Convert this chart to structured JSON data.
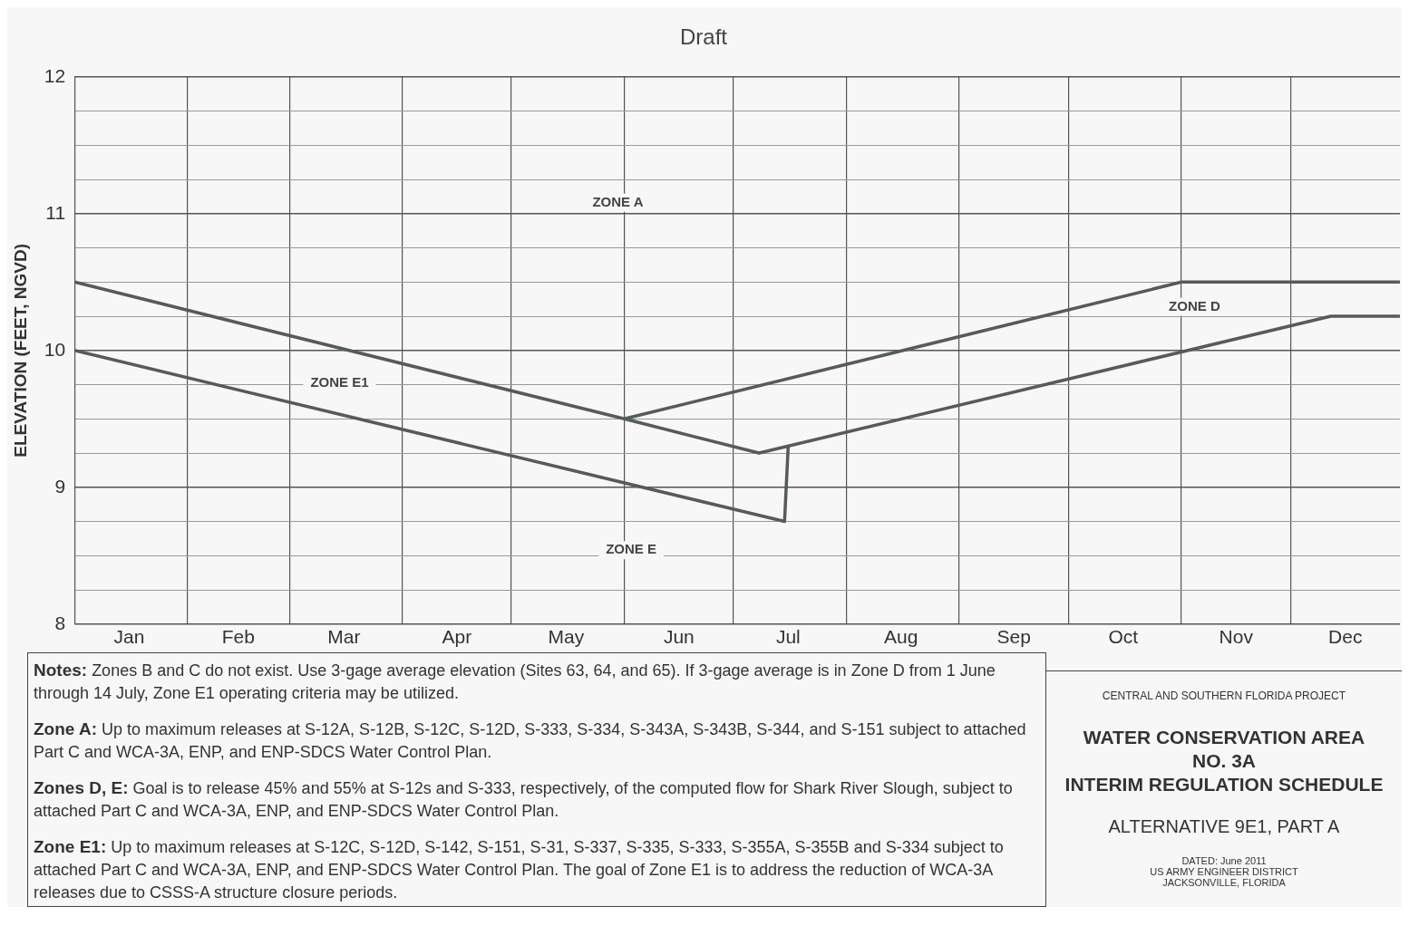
{
  "chart_data": {
    "type": "line",
    "title": "Draft",
    "ylabel": "ELEVATION (FEET, NGVD)",
    "xlim": [
      "--01-01",
      "--12-31"
    ],
    "xticks": [
      {
        "value": "--01-01",
        "label": null
      },
      {
        "value": "--01-16",
        "label": "Jan"
      },
      {
        "value": "--02-01",
        "label": null
      },
      {
        "value": "--02-15",
        "label": "Feb"
      },
      {
        "value": "--03-01",
        "label": null
      },
      {
        "value": "--03-16",
        "label": "Mar"
      },
      {
        "value": "--04-01",
        "label": null
      },
      {
        "value": "--04-16",
        "label": "Apr"
      },
      {
        "value": "--05-01",
        "label": null
      },
      {
        "value": "--05-16",
        "label": "May"
      },
      {
        "value": "--06-01",
        "label": null
      },
      {
        "value": "--06-16",
        "label": "Jun"
      },
      {
        "value": "--07-01",
        "label": null
      },
      {
        "value": "--07-16",
        "label": "Jul"
      },
      {
        "value": "--08-01",
        "label": null
      },
      {
        "value": "--08-16",
        "label": "Aug"
      },
      {
        "value": "--09-01",
        "label": null
      },
      {
        "value": "--09-16",
        "label": "Sep"
      },
      {
        "value": "--10-01",
        "label": null
      },
      {
        "value": "--10-16",
        "label": "Oct"
      },
      {
        "value": "--11-01",
        "label": null
      },
      {
        "value": "--11-16",
        "label": "Nov"
      },
      {
        "value": "--12-01",
        "label": null
      },
      {
        "value": "--12-16",
        "label": "Dec"
      }
    ],
    "ylim": [
      8,
      12
    ],
    "yticks": [
      8,
      {
        "value": 8.25,
        "label": null
      },
      {
        "value": 8.5,
        "label": null
      },
      {
        "value": 8.75,
        "label": null
      },
      9,
      {
        "value": 9.25,
        "label": null
      },
      {
        "value": 9.5,
        "label": null
      },
      {
        "value": 9.75,
        "label": null
      },
      10,
      {
        "value": 10.25,
        "label": null
      },
      {
        "value": 10.5,
        "label": null
      },
      {
        "value": 10.75,
        "label": null
      },
      11,
      {
        "value": 11.25,
        "label": null
      },
      {
        "value": 11.5,
        "label": null
      },
      {
        "value": 11.75,
        "label": null
      },
      12
    ],
    "grid": true,
    "legend": false,
    "marker": "none",
    "line_style": "solid",
    "series": [
      {
        "color": "#555b5b",
        "x": [
          "--01-01",
          "--06-01",
          "--11-01",
          "--12-31"
        ],
        "values": [
          10.5,
          9.5,
          10.5,
          10.5
        ]
      },
      {
        "color": "#555b5b",
        "x": [
          "--06-01",
          "--07-08",
          "--12-12",
          "--12-31"
        ],
        "values": [
          9.5,
          9.25,
          10.25,
          10.25
        ]
      },
      {
        "color": "#555b5b",
        "x": [
          "--01-01",
          "--07-15",
          "--07-16"
        ],
        "values": [
          10,
          8.75,
          9.3
        ]
      }
    ],
    "annotations": [
      "ZONE A",
      "ZONE E1",
      "ZONE E",
      "ZONE D",
      "Notes: Zones B and C do not exist. Use 3-gage average elevation (Sites 63, 64, and 65). If 3-gage average is in Zone D from 1 June through 14 July, Zone E1 operating criteria may be utilized.",
      "Zone A: Up to maximum releases at S-12A, S-12B, S-12C, S-12D, S-333, S-334, S-343A, S-343B, S-344, and S-151 subject to attached Part C and WCA-3A, ENP, and ENP-SDCS Water Control Plan.",
      "Zones D, E: Goal is to release 45% and 55% at S-12s and S-333, respectively, of the computed flow for Shark River Slough, subject to attached Part C and WCA-3A, ENP, and ENP-SDCS Water Control Plan.",
      "Zone E1: Up to maximum releases at S-12C, S-12D, S-142, S-151, S-31, S-337, S-335, S-333, S-355A, S-355B and S-334 subject to attached Part C and WCA-3A, ENP, and ENP-SDCS Water Control Plan. The goal of Zone E1 is to address the reduction of WCA-3A releases due to CSSS-A structure closure periods.",
      "CENTRAL AND SOUTHERN FLORIDA PROJECT",
      "WATER CONSERVATION AREA\nNO. 3A\nINTERIM REGULATION SCHEDULE",
      "ALTERNATIVE 9E1, PART A",
      "DATED: June 2011\nUS ARMY ENGINEER DISTRICT\nJACKSONVILLE, FLORIDA"
    ]
  }
}
